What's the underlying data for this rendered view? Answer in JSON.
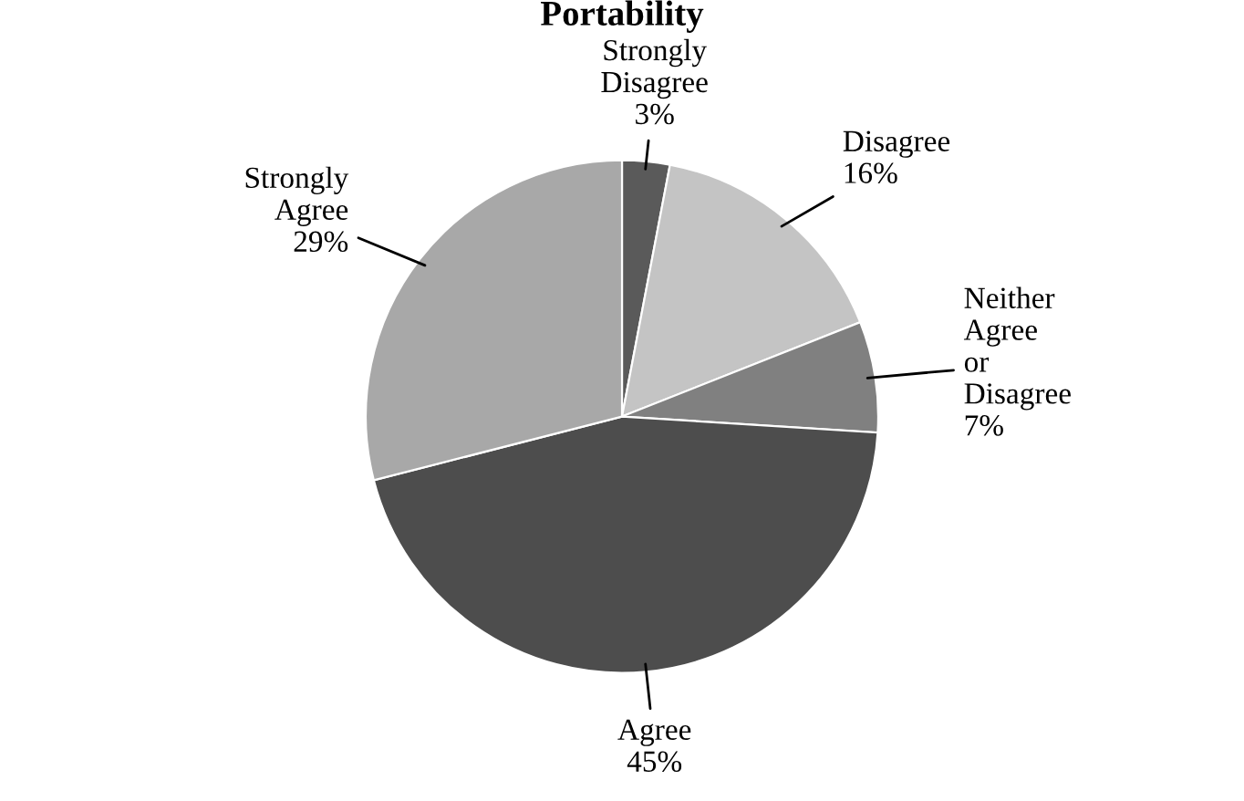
{
  "chart_data": {
    "type": "pie",
    "title": "Portability",
    "categories": [
      "Strongly Disagree",
      "Disagree",
      "Neither Agree or Disagree",
      "Agree",
      "Strongly Agree"
    ],
    "values": [
      3,
      16,
      7,
      45,
      29
    ],
    "value_labels": [
      "3%",
      "16%",
      "7%",
      "45%",
      "29%"
    ],
    "colors": [
      "#5a5a5a",
      "#c4c4c4",
      "#808080",
      "#4d4d4d",
      "#a8a8a8"
    ],
    "legend": false
  }
}
